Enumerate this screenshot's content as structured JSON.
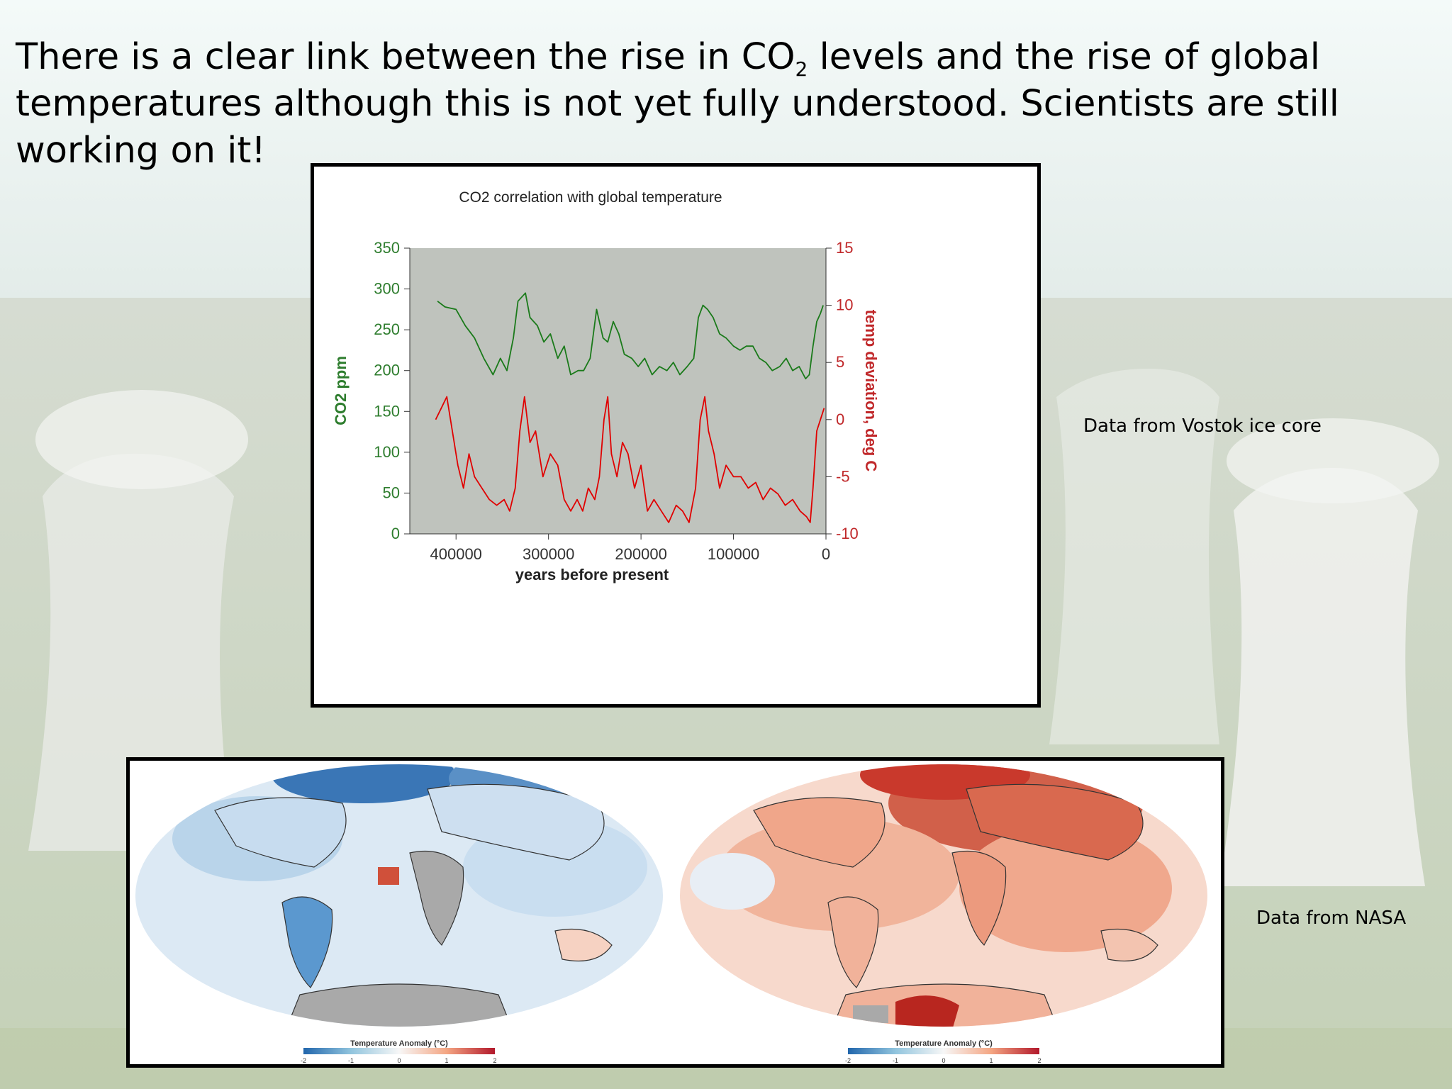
{
  "headline": {
    "part1": "There is a clear link between the rise in CO",
    "sub": "2",
    "part2": " levels and the rise of global temperatures although this is not yet fully understood. Scientists are still working on it!"
  },
  "captions": {
    "vostok": "Data from Vostok ice core",
    "nasa": "Data from NASA"
  },
  "chart_data": {
    "type": "line",
    "title": "CO2 correlation with global temperature",
    "xlabel": "years before present",
    "ylabel_left": "CO2 ppm",
    "ylabel_right": "temp deviation, deg C",
    "xlim": [
      450000,
      0
    ],
    "ylim_left": [
      0,
      350
    ],
    "ylim_right": [
      -10,
      15
    ],
    "x_ticks": [
      400000,
      300000,
      200000,
      100000,
      0
    ],
    "y_ticks_left": [
      0,
      50,
      100,
      150,
      200,
      250,
      300,
      350
    ],
    "y_ticks_right": [
      -10,
      -5,
      0,
      5,
      10,
      15
    ],
    "colors": {
      "co2": "#1a7a1a",
      "temp": "#e00000",
      "plot_bg": "#bfc3bd",
      "left_axis_text": "#2e7d2e",
      "right_axis_text": "#c0282a"
    },
    "series": [
      {
        "axis": "left",
        "x": [
          420000,
          412000,
          400000,
          390000,
          380000,
          370000,
          360000,
          352000,
          345000,
          338000,
          333000,
          325000,
          320000,
          312000,
          305000,
          298000,
          290000,
          283000,
          276000,
          268000,
          262000,
          255000,
          248000,
          241000,
          236000,
          230000,
          224000,
          218000,
          210000,
          203000,
          196000,
          188000,
          180000,
          172000,
          165000,
          158000,
          150000,
          143000,
          138000,
          133000,
          128000,
          122000,
          115000,
          108000,
          100000,
          93000,
          86000,
          79000,
          72000,
          65000,
          58000,
          50000,
          43000,
          36000,
          29000,
          22000,
          18000,
          14000,
          10000,
          6000,
          3000
        ],
        "values": [
          285,
          278,
          275,
          255,
          240,
          215,
          195,
          215,
          200,
          240,
          285,
          295,
          265,
          255,
          235,
          245,
          215,
          230,
          195,
          200,
          200,
          215,
          275,
          240,
          235,
          260,
          245,
          220,
          215,
          205,
          215,
          195,
          205,
          200,
          210,
          195,
          205,
          215,
          265,
          280,
          275,
          265,
          245,
          240,
          230,
          225,
          230,
          230,
          215,
          210,
          200,
          205,
          215,
          200,
          205,
          190,
          195,
          230,
          260,
          270,
          280
        ]
      },
      {
        "axis": "right",
        "x": [
          422000,
          416000,
          410000,
          404000,
          398000,
          392000,
          386000,
          380000,
          372000,
          364000,
          356000,
          348000,
          342000,
          336000,
          331000,
          326000,
          320000,
          314000,
          306000,
          298000,
          290000,
          283000,
          276000,
          269000,
          263000,
          257000,
          250000,
          245000,
          240000,
          236000,
          232000,
          226000,
          220000,
          214000,
          207000,
          200000,
          193000,
          186000,
          178000,
          170000,
          162000,
          155000,
          148000,
          141000,
          136000,
          131000,
          127000,
          121000,
          115000,
          108000,
          100000,
          92000,
          84000,
          76000,
          68000,
          60000,
          52000,
          44000,
          36000,
          28000,
          21000,
          17000,
          14000,
          10000,
          6000,
          2000
        ],
        "values": [
          0,
          1,
          2,
          -1,
          -4,
          -6,
          -3,
          -5,
          -6,
          -7,
          -7.5,
          -7,
          -8,
          -6,
          -1,
          2,
          -2,
          -1,
          -5,
          -3,
          -4,
          -7,
          -8,
          -7,
          -8,
          -6,
          -7,
          -5,
          0,
          2,
          -3,
          -5,
          -2,
          -3,
          -6,
          -4,
          -8,
          -7,
          -8,
          -9,
          -7.5,
          -8,
          -9,
          -6,
          0,
          2,
          -1,
          -3,
          -6,
          -4,
          -5,
          -5,
          -6,
          -5.5,
          -7,
          -6,
          -6.5,
          -7.5,
          -7,
          -8,
          -8.5,
          -9,
          -6,
          -1,
          0,
          1
        ]
      }
    ]
  },
  "maps": {
    "left": {
      "legend_title": "Temperature Anomaly (°C)",
      "legend_ticks": [
        "-2",
        "-1",
        "0",
        "1",
        "2"
      ]
    },
    "right": {
      "legend_title": "Temperature Anomaly (°C)",
      "legend_ticks": [
        "-2",
        "-1",
        "0",
        "1",
        "2"
      ]
    }
  }
}
